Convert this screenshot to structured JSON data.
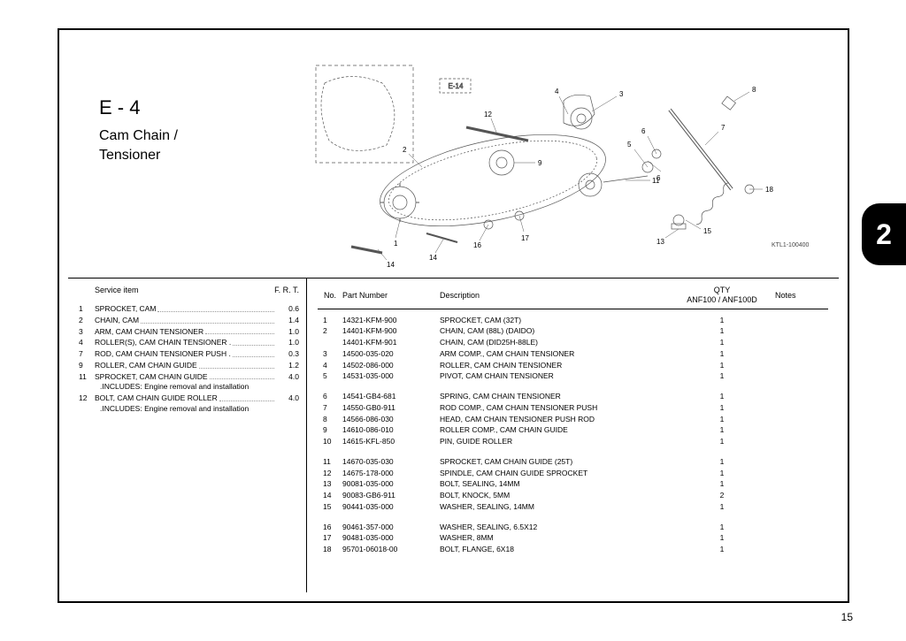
{
  "page": {
    "section_code": "E - 4",
    "section_title_line1": "Cam Chain /",
    "section_title_line2": "Tensioner",
    "chapter_tab": "2",
    "page_number": "15",
    "diagram_ref": "E-14",
    "diagram_footer": "KTL1-100400"
  },
  "service": {
    "header_item": "Service item",
    "header_frt": "F. R. T.",
    "items": [
      {
        "no": "1",
        "desc": "SPROCKET, CAM",
        "frt": "0.6",
        "note": ""
      },
      {
        "no": "2",
        "desc": "CHAIN, CAM",
        "frt": "1.4",
        "note": ""
      },
      {
        "no": "3",
        "desc": "ARM, CAM CHAIN TENSIONER",
        "frt": "1.0",
        "note": ""
      },
      {
        "no": "4",
        "desc": "ROLLER(S), CAM CHAIN TENSIONER .",
        "frt": "1.0",
        "note": ""
      },
      {
        "no": "7",
        "desc": "ROD, CAM CHAIN TENSIONER PUSH .",
        "frt": "0.3",
        "note": ""
      },
      {
        "no": "9",
        "desc": "ROLLER, CAM CHAIN GUIDE",
        "frt": "1.2",
        "note": ""
      },
      {
        "no": "11",
        "desc": "SPROCKET, CAM CHAIN GUIDE",
        "frt": "4.0",
        "note": ".INCLUDES: Engine removal and installation"
      },
      {
        "no": "12",
        "desc": "BOLT, CAM CHAIN GUIDE ROLLER",
        "frt": "4.0",
        "note": ".INCLUDES: Engine removal and installation"
      }
    ]
  },
  "parts": {
    "header": {
      "no": "No.",
      "part": "Part Number",
      "desc": "Description",
      "qty_line1": "QTY",
      "qty_line2": "ANF100 / ANF100D",
      "notes": "Notes"
    },
    "groups": [
      [
        {
          "no": "1",
          "part": "14321-KFM-900",
          "desc": "SPROCKET, CAM (32T)",
          "qty": "1"
        },
        {
          "no": "2",
          "part": "14401-KFM-900",
          "desc": "CHAIN, CAM (88L) (DAIDO)",
          "qty": "1"
        },
        {
          "no": "",
          "part": "14401-KFM-901",
          "desc": "CHAIN, CAM (DID25H-88LE)",
          "qty": "1"
        },
        {
          "no": "3",
          "part": "14500-035-020",
          "desc": "ARM COMP., CAM CHAIN TENSIONER",
          "qty": "1"
        },
        {
          "no": "4",
          "part": "14502-086-000",
          "desc": "ROLLER, CAM CHAIN TENSIONER",
          "qty": "1"
        },
        {
          "no": "5",
          "part": "14531-035-000",
          "desc": "PIVOT, CAM CHAIN TENSIONER",
          "qty": "1"
        }
      ],
      [
        {
          "no": "6",
          "part": "14541-GB4-681",
          "desc": "SPRING, CAM CHAIN TENSIONER",
          "qty": "1"
        },
        {
          "no": "7",
          "part": "14550-GB0-911",
          "desc": "ROD COMP., CAM CHAIN TENSIONER PUSH",
          "qty": "1"
        },
        {
          "no": "8",
          "part": "14566-086-030",
          "desc": "HEAD, CAM CHAIN TENSIONER PUSH   ROD",
          "qty": "1"
        },
        {
          "no": "9",
          "part": "14610-086-010",
          "desc": "ROLLER COMP., CAM CHAIN GUIDE",
          "qty": "1"
        },
        {
          "no": "10",
          "part": "14615-KFL-850",
          "desc": "PIN, GUIDE ROLLER",
          "qty": "1"
        }
      ],
      [
        {
          "no": "11",
          "part": "14670-035-030",
          "desc": "SPROCKET, CAM CHAIN GUIDE (25T)",
          "qty": "1"
        },
        {
          "no": "12",
          "part": "14675-178-000",
          "desc": "SPINDLE, CAM CHAIN GUIDE   SPROCKET",
          "qty": "1"
        },
        {
          "no": "13",
          "part": "90081-035-000",
          "desc": "BOLT, SEALING, 14MM",
          "qty": "1"
        },
        {
          "no": "14",
          "part": "90083-GB6-911",
          "desc": "BOLT, KNOCK, 5MM",
          "qty": "2"
        },
        {
          "no": "15",
          "part": "90441-035-000",
          "desc": "WASHER, SEALING, 14MM",
          "qty": "1"
        }
      ],
      [
        {
          "no": "16",
          "part": "90461-357-000",
          "desc": "WASHER, SEALING, 6.5X12",
          "qty": "1"
        },
        {
          "no": "17",
          "part": "90481-035-000",
          "desc": "WASHER, 8MM",
          "qty": "1"
        },
        {
          "no": "18",
          "part": "95701-06018-00",
          "desc": "BOLT, FLANGE, 6X18",
          "qty": "1"
        }
      ]
    ]
  },
  "callouts": [
    "1",
    "2",
    "3",
    "4",
    "5",
    "6",
    "7",
    "8",
    "9",
    "10",
    "11",
    "12",
    "13",
    "14",
    "15",
    "16",
    "17",
    "18"
  ]
}
